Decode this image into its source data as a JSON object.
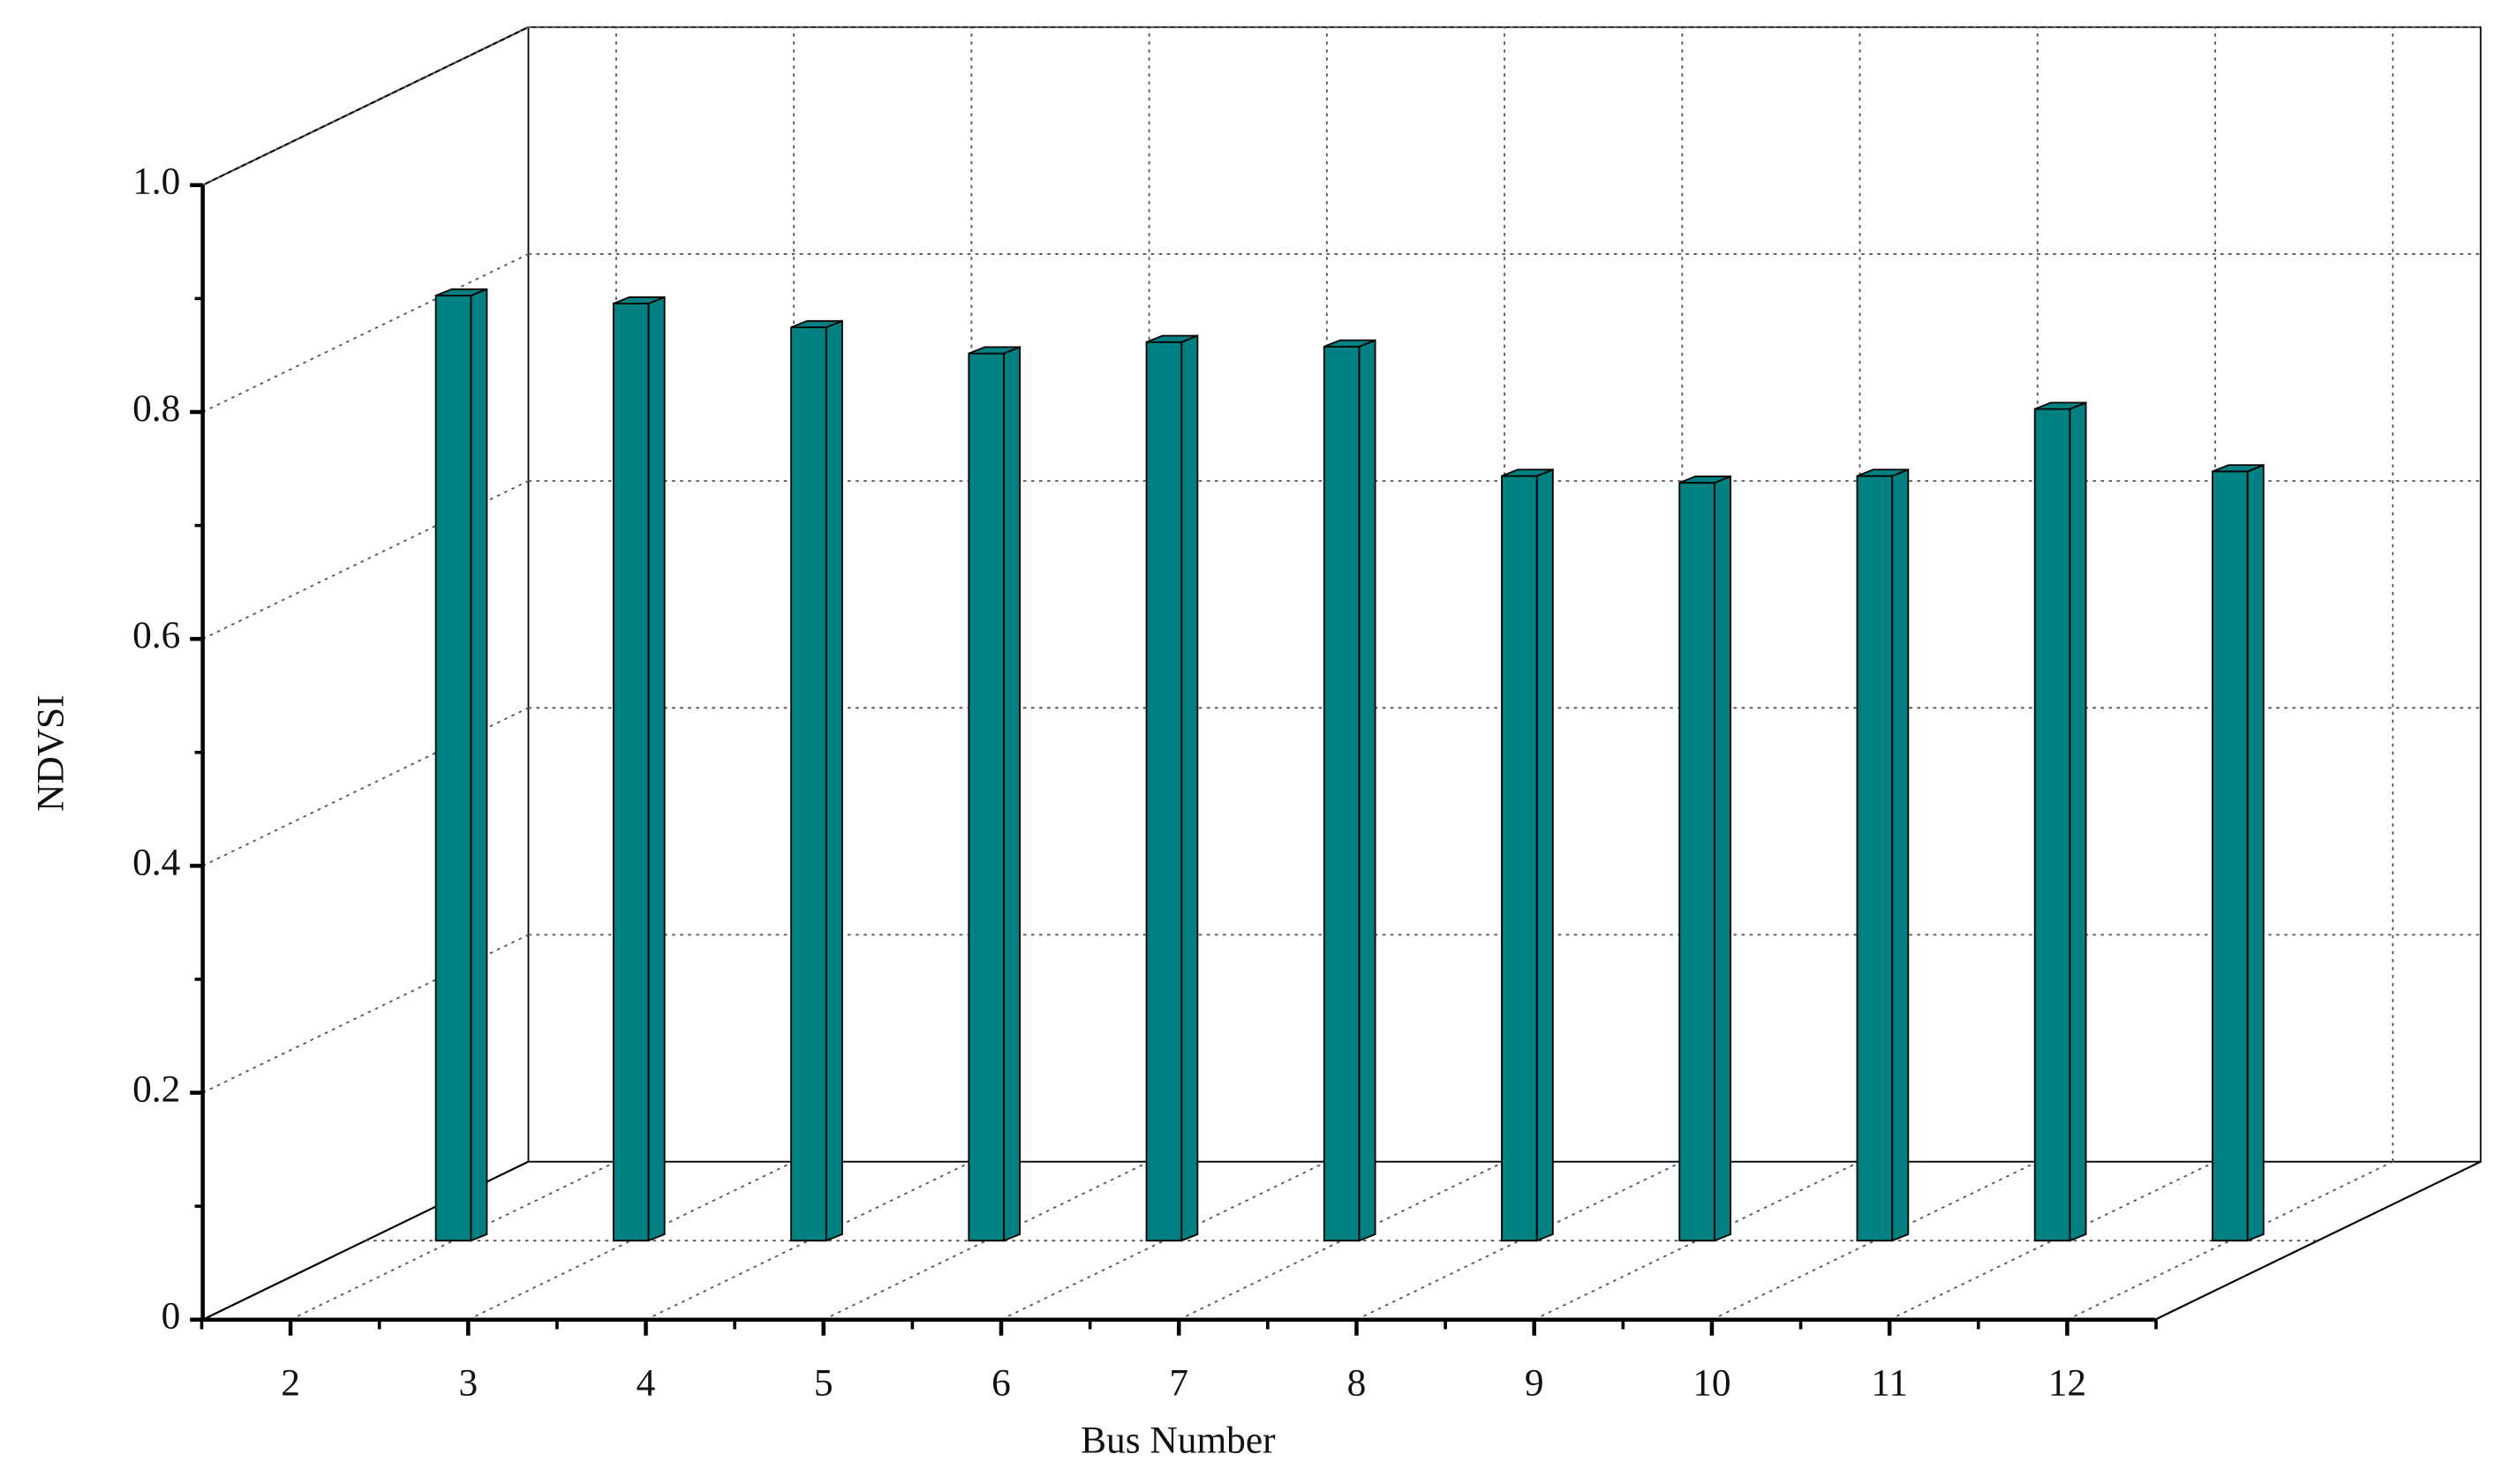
{
  "chart_data": {
    "type": "bar3d",
    "x_label": "Bus Number",
    "y_label": "NDVSI",
    "categories": [
      "2",
      "3",
      "4",
      "5",
      "6",
      "7",
      "8",
      "9",
      "10",
      "11",
      "12"
    ],
    "values": [
      0.833,
      0.826,
      0.805,
      0.782,
      0.792,
      0.788,
      0.674,
      0.668,
      0.674,
      0.733,
      0.678
    ],
    "color": "#008080",
    "ylim": [
      0,
      1
    ],
    "yticks": [
      0,
      0.2,
      0.4,
      0.6,
      0.8,
      {
        "value": 1,
        "label": "1.0"
      }
    ],
    "grid": true
  }
}
